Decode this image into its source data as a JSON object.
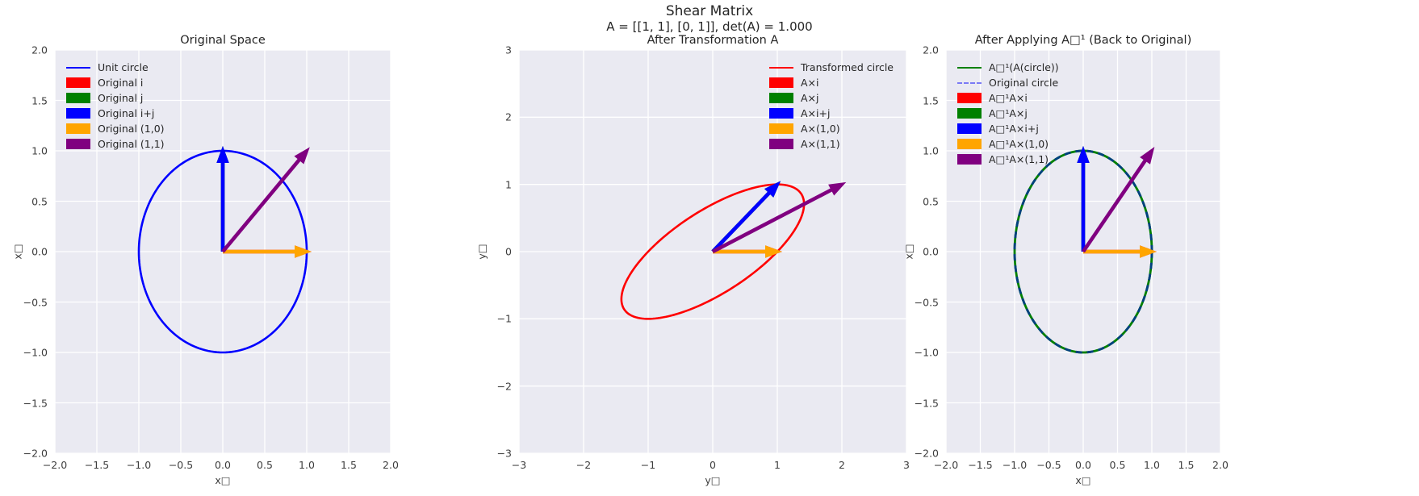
{
  "figure": {
    "suptitle": "Shear Matrix",
    "subtitle": "A = [[1, 1], [0, 1]], det(A) = 1.000",
    "background": "#ffffff",
    "axes_background": "#eaeaf2",
    "grid_color": "#ffffff",
    "title_color": "#262626",
    "tick_color": "#3d3d3d"
  },
  "chart_data": [
    {
      "type": "line",
      "title": "Original Space",
      "xlabel": "x□",
      "ylabel": "x□",
      "xlim": [
        -2,
        2
      ],
      "ylim": [
        -2,
        2
      ],
      "grid": true,
      "xtick_labels": [
        "−2.0",
        "−1.5",
        "−1.0",
        "−0.5",
        "0.0",
        "0.5",
        "1.0",
        "1.5",
        "2.0"
      ],
      "ytick_labels": [
        "2.0",
        "1.5",
        "1.0",
        "0.5",
        "0.0",
        "−0.5",
        "−1.0",
        "−1.5",
        "−2.0"
      ],
      "shapes": [
        {
          "name": "unit-circle",
          "kind": "circle",
          "matrix": [
            [
              1,
              0
            ],
            [
              0,
              1
            ]
          ],
          "color": "#0000ff",
          "dash": false,
          "width": 2.6
        }
      ],
      "vectors": [
        {
          "name": "vector-i",
          "x": 1,
          "y": 0,
          "color": "#ff0000"
        },
        {
          "name": "vector-j",
          "x": 0,
          "y": 1,
          "color": "#008000"
        },
        {
          "name": "vector-1-0",
          "x": 1,
          "y": 0,
          "color": "#ffa500"
        },
        {
          "name": "vector-0-1",
          "x": 0,
          "y": 1,
          "color": "#0000ff"
        },
        {
          "name": "vector-1-1",
          "x": 1,
          "y": 1,
          "color": "#800080"
        }
      ],
      "legend_position": "upper left",
      "legend": [
        {
          "label": "Unit circle",
          "swatch": "line",
          "color": "#0000ff",
          "dash": false
        },
        {
          "label": "Original i",
          "swatch": "patch",
          "color": "#ff0000"
        },
        {
          "label": "Original j",
          "swatch": "patch",
          "color": "#008000"
        },
        {
          "label": "Original i+j",
          "swatch": "patch",
          "color": "#0000ff"
        },
        {
          "label": "Original (1,0)",
          "swatch": "patch",
          "color": "#ffa500"
        },
        {
          "label": "Original (1,1)",
          "swatch": "patch",
          "color": "#800080"
        }
      ]
    },
    {
      "type": "line",
      "title": "After Transformation A",
      "xlabel": "y□",
      "ylabel": "y□",
      "xlim": [
        -3,
        3
      ],
      "ylim": [
        -3,
        3
      ],
      "grid": true,
      "xtick_labels": [
        "−3",
        "−2",
        "−1",
        "0",
        "1",
        "2",
        "3"
      ],
      "ytick_labels": [
        "3",
        "2",
        "1",
        "0",
        "−1",
        "−2",
        "−3"
      ],
      "shapes": [
        {
          "name": "transformed-circle",
          "kind": "circle",
          "matrix": [
            [
              1,
              1
            ],
            [
              0,
              1
            ]
          ],
          "color": "#ff0000",
          "dash": false,
          "width": 2.6
        }
      ],
      "vectors": [
        {
          "name": "vector-A-i",
          "x": 1,
          "y": 0,
          "color": "#ff0000"
        },
        {
          "name": "vector-A-j",
          "x": 1,
          "y": 1,
          "color": "#008000"
        },
        {
          "name": "vector-A-1-0",
          "x": 1,
          "y": 0,
          "color": "#ffa500"
        },
        {
          "name": "vector-A-0-1",
          "x": 1,
          "y": 1,
          "color": "#0000ff"
        },
        {
          "name": "vector-A-1-1",
          "x": 2,
          "y": 1,
          "color": "#800080"
        }
      ],
      "legend_position": "upper right",
      "legend": [
        {
          "label": "Transformed circle",
          "swatch": "line",
          "color": "#ff0000",
          "dash": false
        },
        {
          "label": "A×i",
          "swatch": "patch",
          "color": "#ff0000"
        },
        {
          "label": "A×j",
          "swatch": "patch",
          "color": "#008000"
        },
        {
          "label": "A×i+j",
          "swatch": "patch",
          "color": "#0000ff"
        },
        {
          "label": "A×(1,0)",
          "swatch": "patch",
          "color": "#ffa500"
        },
        {
          "label": "A×(1,1)",
          "swatch": "patch",
          "color": "#800080"
        }
      ]
    },
    {
      "type": "line",
      "title": "After Applying A□¹ (Back to Original)",
      "xlabel": "x□",
      "ylabel": "x□",
      "xlim": [
        -2,
        2
      ],
      "ylim": [
        -2,
        2
      ],
      "grid": true,
      "xtick_labels": [
        "−2.0",
        "−1.5",
        "−1.0",
        "−0.5",
        "0.0",
        "0.5",
        "1.0",
        "1.5",
        "2.0"
      ],
      "ytick_labels": [
        "2.0",
        "1.5",
        "1.0",
        "0.5",
        "0.0",
        "−0.5",
        "−1.0",
        "−1.5",
        "−2.0"
      ],
      "shapes": [
        {
          "name": "recovered-circle",
          "kind": "circle",
          "matrix": [
            [
              1,
              0
            ],
            [
              0,
              1
            ]
          ],
          "color": "#008000",
          "dash": false,
          "width": 2.8
        },
        {
          "name": "original-circle-dashed-overlay",
          "kind": "circle",
          "matrix": [
            [
              1,
              0
            ],
            [
              0,
              1
            ]
          ],
          "color": "#00407f",
          "dash": true,
          "width": 2.8
        }
      ],
      "vectors": [
        {
          "name": "vector-AinvA-i",
          "x": 1,
          "y": 0,
          "color": "#ff0000"
        },
        {
          "name": "vector-AinvA-j",
          "x": 0,
          "y": 1,
          "color": "#008000"
        },
        {
          "name": "vector-AinvA-1-0",
          "x": 1,
          "y": 0,
          "color": "#ffa500"
        },
        {
          "name": "vector-AinvA-0-1",
          "x": 0,
          "y": 1,
          "color": "#0000ff"
        },
        {
          "name": "vector-AinvA-1-1",
          "x": 1,
          "y": 1,
          "color": "#800080"
        }
      ],
      "legend_position": "upper left",
      "legend": [
        {
          "label": "A□¹(A(circle))",
          "swatch": "line",
          "color": "#008000",
          "dash": false
        },
        {
          "label": "Original circle",
          "swatch": "line",
          "color": "#7a7af5",
          "dash": true
        },
        {
          "label": "A□¹A×i",
          "swatch": "patch",
          "color": "#ff0000"
        },
        {
          "label": "A□¹A×j",
          "swatch": "patch",
          "color": "#008000"
        },
        {
          "label": "A□¹A×i+j",
          "swatch": "patch",
          "color": "#0000ff"
        },
        {
          "label": "A□¹A×(1,0)",
          "swatch": "patch",
          "color": "#ffa500"
        },
        {
          "label": "A□¹A×(1,1)",
          "swatch": "patch",
          "color": "#800080"
        }
      ]
    }
  ]
}
